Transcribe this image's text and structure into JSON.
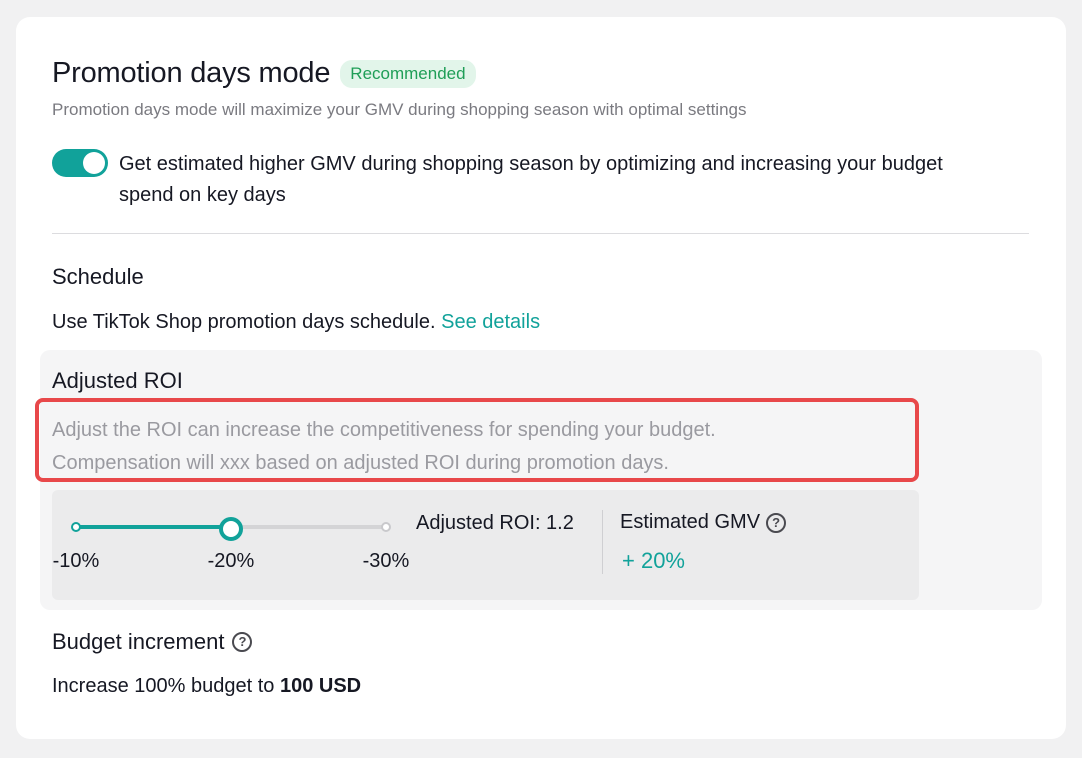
{
  "header": {
    "title": "Promotion days mode",
    "badge": "Recommended",
    "subtitle": "Promotion days mode will maximize your GMV during shopping season with optimal settings"
  },
  "toggle": {
    "on": true,
    "label": "Get estimated higher GMV during shopping season by optimizing and increasing your budget spend on key days"
  },
  "schedule": {
    "title": "Schedule",
    "text": "Use TikTok Shop promotion days schedule.",
    "link": "See details"
  },
  "adjusted_roi": {
    "title": "Adjusted ROI",
    "description_line1": "Adjust the ROI can increase the competitiveness for spending your budget.",
    "description_line2": "Compensation will xxx based on adjusted ROI during promotion days.",
    "slider": {
      "ticks": [
        "-10%",
        "-20%",
        "-30%"
      ],
      "selected_index": 1
    },
    "roi_label": "Adjusted ROI: 1.2",
    "gmv_label": "Estimated GMV",
    "gmv_value": "+ 20%"
  },
  "budget": {
    "title": "Budget increment",
    "text_prefix": "Increase 100% budget to",
    "amount": "100 USD"
  },
  "colors": {
    "accent": "#11a29a",
    "badge_bg": "#e2f5ea",
    "badge_text": "#1f9e57",
    "highlight_border": "#e8484a"
  }
}
